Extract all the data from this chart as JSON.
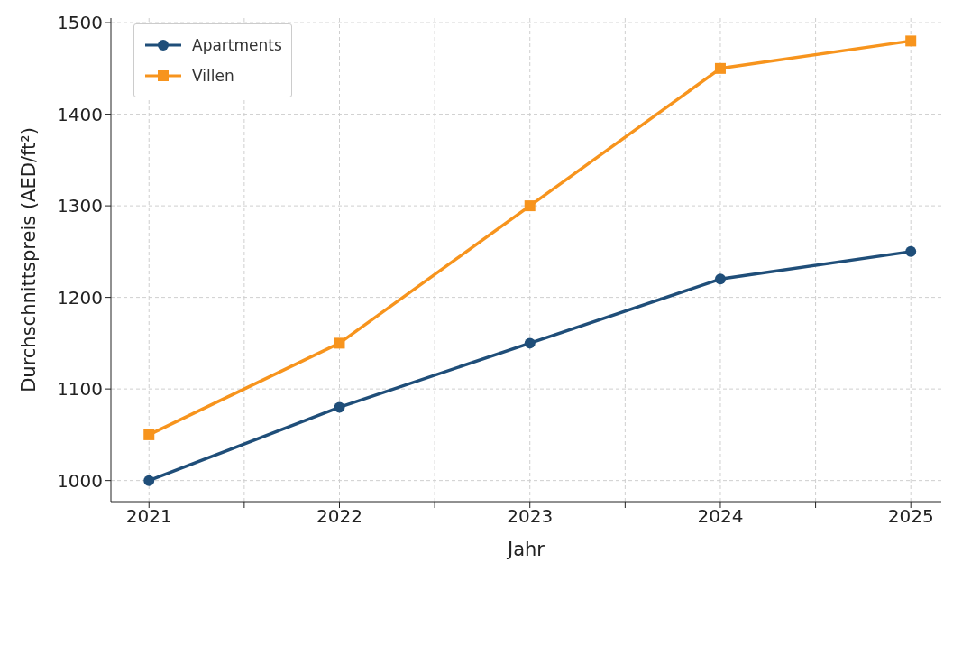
{
  "chart_data": {
    "type": "line",
    "xlabel": "Jahr",
    "ylabel": "Durchschnittspreis (AED/ft²)",
    "x": [
      2021,
      2022,
      2023,
      2024,
      2025
    ],
    "series": [
      {
        "name": "Apartments",
        "color": "#1f4e79",
        "marker": "circle",
        "values": [
          1000,
          1080,
          1150,
          1220,
          1250
        ]
      },
      {
        "name": "Villen",
        "color": "#f7941d",
        "marker": "square",
        "values": [
          1050,
          1150,
          1300,
          1450,
          1480
        ]
      }
    ],
    "xlim": [
      2020.8,
      2025.16
    ],
    "xticks": [
      2021,
      {
        "value": 2021.5,
        "label": null
      },
      2022,
      {
        "value": 2022.5,
        "label": null
      },
      2023,
      {
        "value": 2023.5,
        "label": null
      },
      2024,
      {
        "value": 2024.5,
        "label": null
      },
      2025
    ],
    "ylim": [
      977,
      1505
    ],
    "yticks": [
      1000,
      1100,
      1200,
      1300,
      1400,
      1500
    ],
    "grid": true,
    "legend": "top left",
    "line_style": "solid"
  }
}
